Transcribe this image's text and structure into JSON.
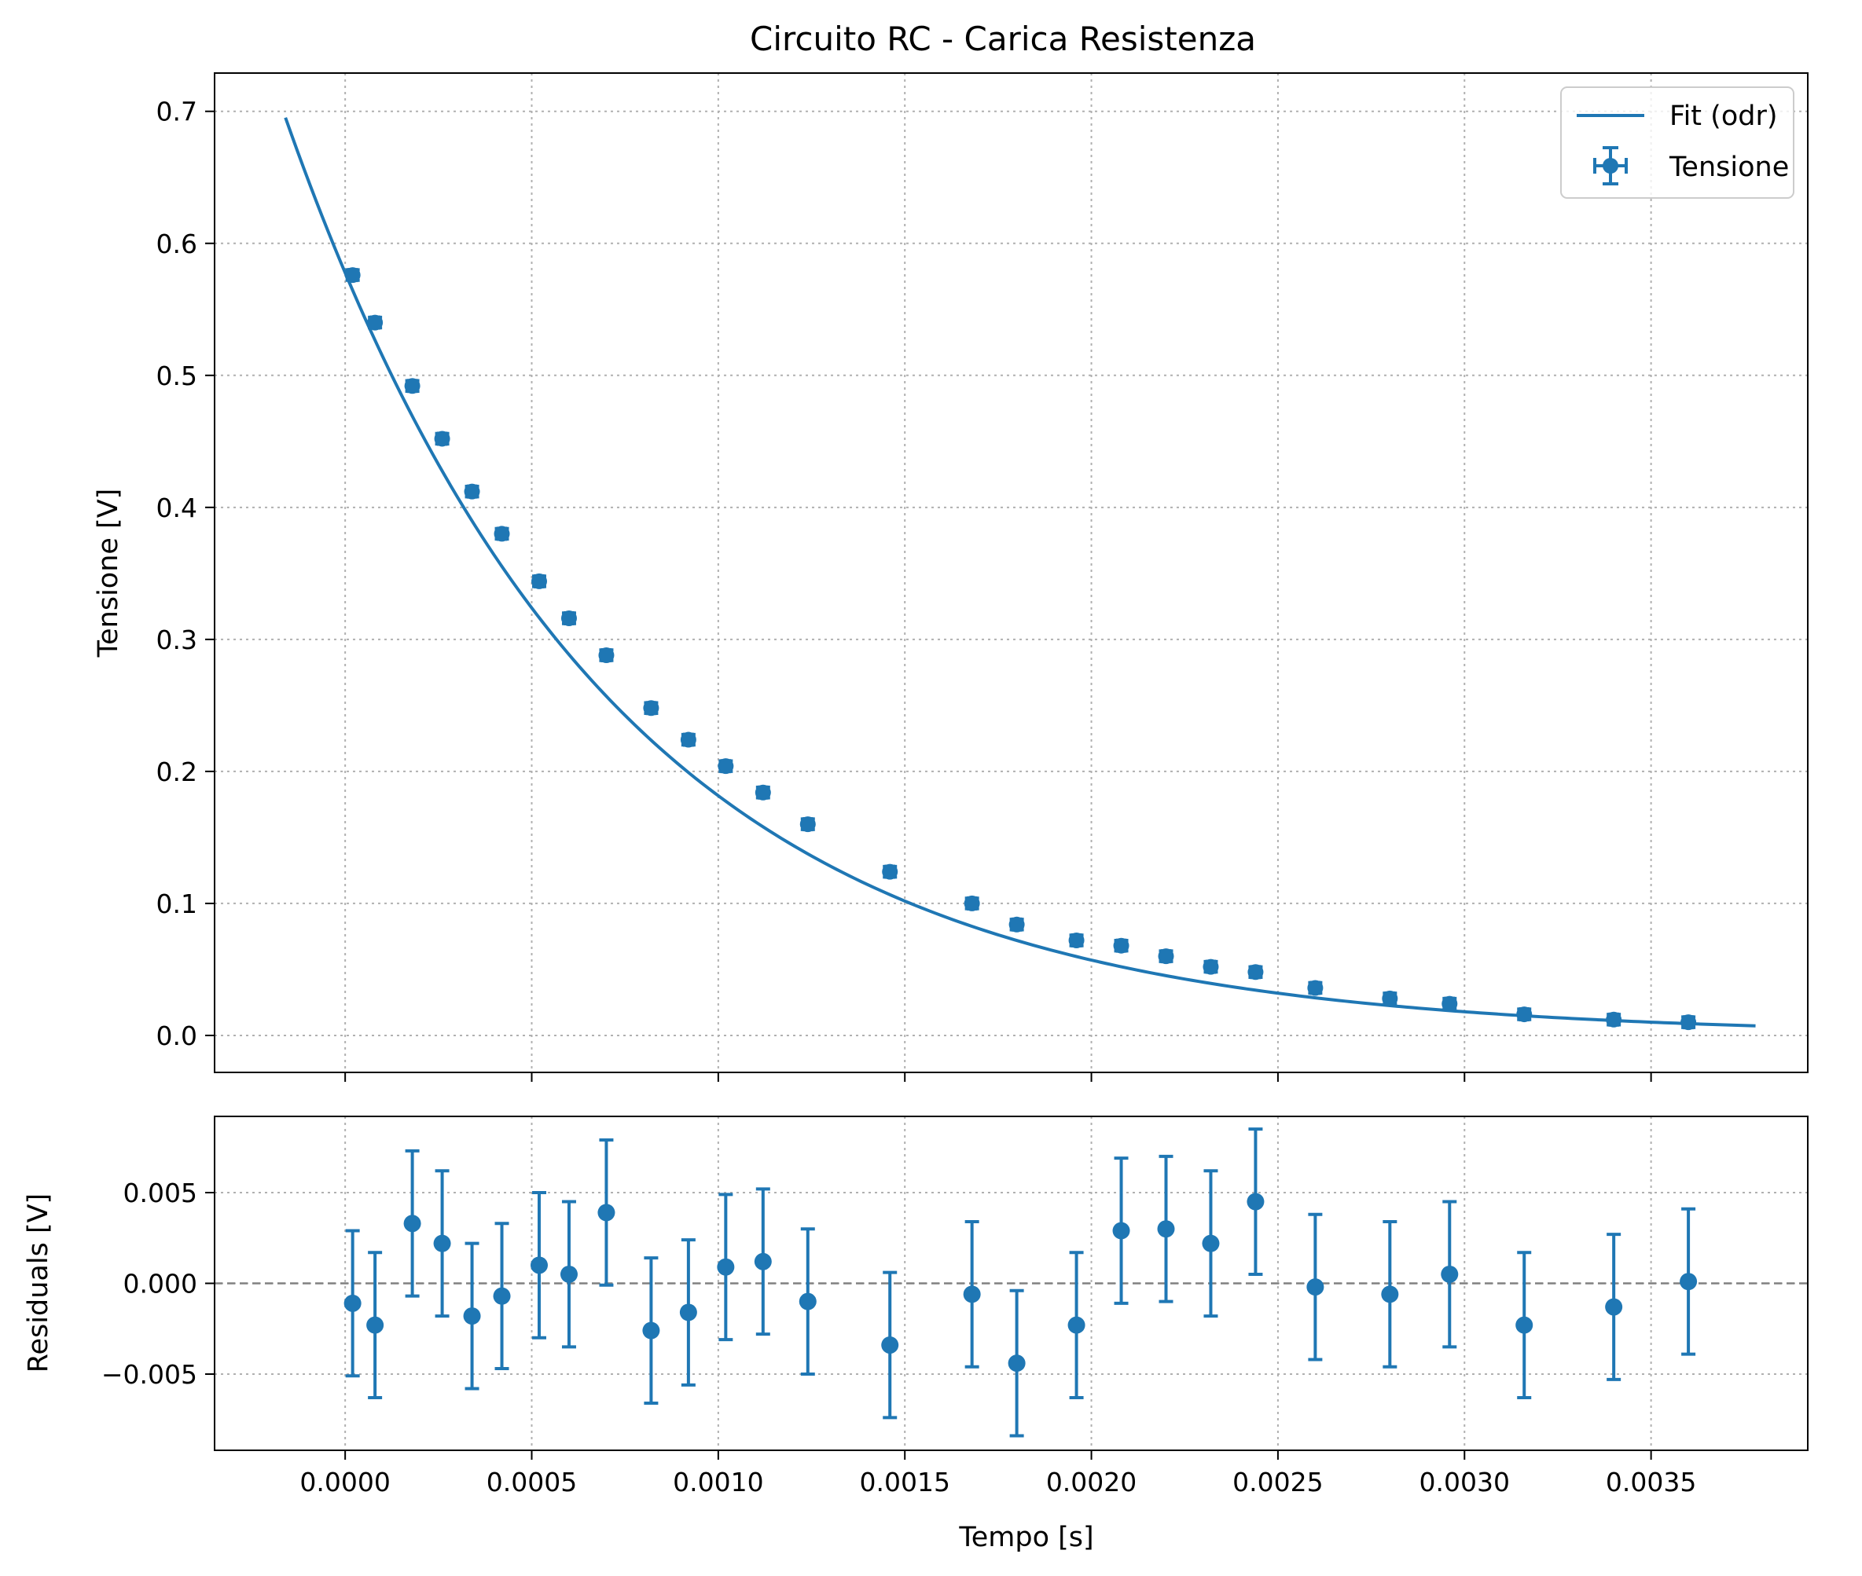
{
  "chart_data": {
    "type": "scatter",
    "title": "Circuito RC - Carica Resistenza",
    "xlabel": "Tempo [s]",
    "colors": {
      "series": "#1f77b4",
      "grid": "#b0b0b0",
      "zero_line": "#808080"
    },
    "grid": true,
    "x_tick_labels": [
      "0.0000",
      "0.0005",
      "0.0010",
      "0.0015",
      "0.0020",
      "0.0025",
      "0.0030",
      "0.0035"
    ],
    "xlim": [
      -0.00035,
      0.00392
    ],
    "main": {
      "ylabel": "Tensione [V]",
      "ylim": [
        -0.028,
        0.729
      ],
      "y_ticks": [
        0.0,
        0.1,
        0.2,
        0.3,
        0.4,
        0.5,
        0.6,
        0.7
      ],
      "y_tick_labels": [
        "0.0",
        "0.1",
        "0.2",
        "0.3",
        "0.4",
        "0.5",
        "0.6",
        "0.7"
      ],
      "legend": {
        "location": "top-right",
        "entries": [
          "Fit (odr)",
          "Tensione"
        ]
      },
      "fit": {
        "name": "Fit (odr)",
        "model": "exponential decay",
        "A": 0.5777,
        "tau": 0.000864,
        "x_range": [
          -0.00016,
          0.00378
        ]
      },
      "data": {
        "name": "Tensione",
        "x": [
          2e-05,
          8e-05,
          0.00018,
          0.00026,
          0.00034,
          0.00042,
          0.00052,
          0.0006,
          0.0007,
          0.00082,
          0.00092,
          0.00102,
          0.00112,
          0.00124,
          0.00146,
          0.00168,
          0.0018,
          0.00196,
          0.00208,
          0.0022,
          0.00232,
          0.00244,
          0.0026,
          0.0028,
          0.00296,
          0.00316,
          0.0034,
          0.0036
        ],
        "y": [
          0.576,
          0.54,
          0.492,
          0.452,
          0.412,
          0.38,
          0.344,
          0.316,
          0.288,
          0.248,
          0.224,
          0.204,
          0.184,
          0.16,
          0.124,
          0.1,
          0.084,
          0.072,
          0.068,
          0.06,
          0.052,
          0.048,
          0.036,
          0.028,
          0.024,
          0.016,
          0.012,
          0.01
        ],
        "y_err": 0.004,
        "x_err": 1e-05
      }
    },
    "residuals": {
      "ylabel": "Residuals [V]",
      "ylim": [
        -0.0092,
        0.0092
      ],
      "y_ticks": [
        -0.005,
        0.0,
        0.005
      ],
      "y_tick_labels": [
        "−0.005",
        "0.000",
        "0.005"
      ],
      "x": [
        2e-05,
        8e-05,
        0.00018,
        0.00026,
        0.00034,
        0.00042,
        0.00052,
        0.0006,
        0.0007,
        0.00082,
        0.00092,
        0.00102,
        0.00112,
        0.00124,
        0.00146,
        0.00168,
        0.0018,
        0.00196,
        0.00208,
        0.0022,
        0.00232,
        0.00244,
        0.0026,
        0.0028,
        0.00296,
        0.00316,
        0.0034,
        0.0036
      ],
      "y": [
        -0.0011,
        -0.0023,
        0.0033,
        0.0022,
        -0.0018,
        -0.0007,
        0.001,
        0.0005,
        0.0039,
        -0.0026,
        -0.0016,
        0.0009,
        0.0012,
        -0.001,
        -0.0034,
        -0.0006,
        -0.0044,
        -0.0023,
        0.0029,
        0.003,
        0.0022,
        0.0045,
        -0.0002,
        -0.0006,
        0.0005,
        -0.0023,
        -0.0013,
        0.0001
      ],
      "y_err": 0.004
    }
  }
}
